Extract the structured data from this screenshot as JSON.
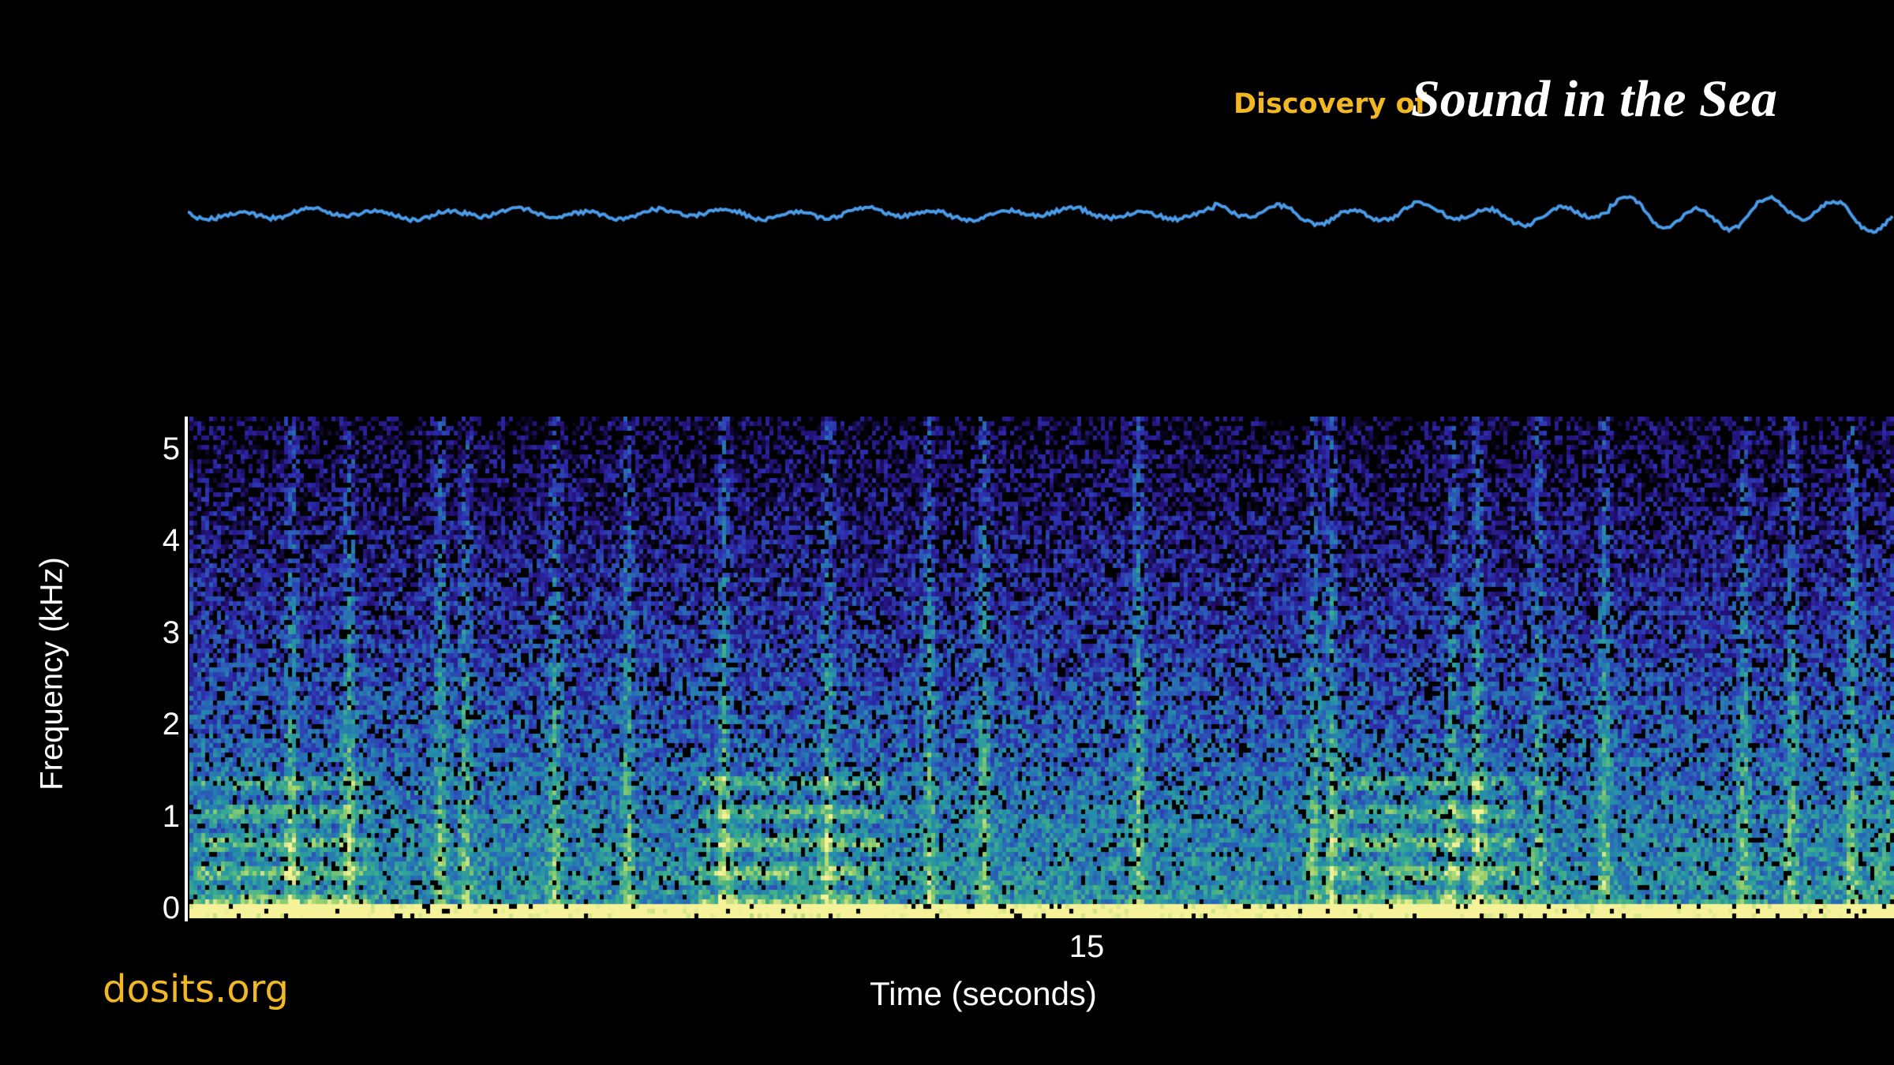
{
  "header": {
    "title_prefix": "Discovery of",
    "title_main": "Sound in the Sea"
  },
  "footer": {
    "site": "dosits.org"
  },
  "colors": {
    "waveform": "#4a9be8",
    "brand_yellow": "#f2b824",
    "colormap": [
      "#000000",
      "#24127a",
      "#2e2fb0",
      "#2a63b8",
      "#248fa8",
      "#3fb08a",
      "#9ad06a",
      "#f6f29a"
    ]
  },
  "chart_data": [
    {
      "type": "line",
      "name_hint": "",
      "description_visible": "waveform",
      "xlabel": "",
      "ylabel": ""
    },
    {
      "type": "heatmap",
      "xlabel": "Time (seconds)",
      "ylabel": "Frequency (kHz)",
      "xticks": [
        "15"
      ],
      "yticks": [
        "0",
        "1",
        "2",
        "3",
        "4",
        "5"
      ],
      "ylim": [
        0,
        5.35
      ],
      "grid": false
    }
  ]
}
